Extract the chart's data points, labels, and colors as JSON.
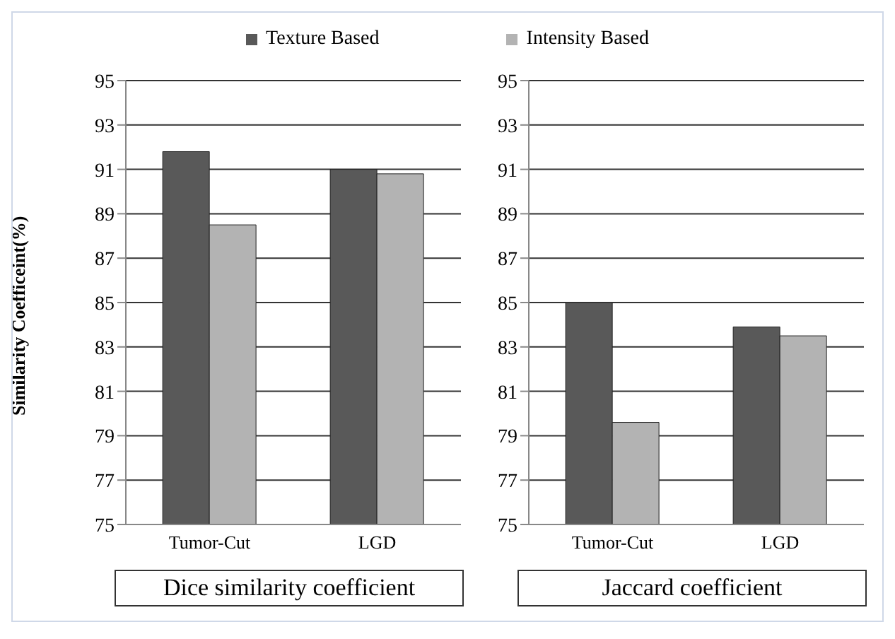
{
  "chart_data": [
    {
      "type": "bar",
      "ylabel": "Similarity Coefficeint(%)",
      "xlabel": "Dice similarity coefficient",
      "categories": [
        "Tumor-Cut",
        "LGD"
      ],
      "series": [
        {
          "name": "Texture Based",
          "color": "#595959",
          "values": [
            91.8,
            91.0
          ]
        },
        {
          "name": "Intensity Based",
          "color": "#b3b3b3",
          "values": [
            88.5,
            90.8
          ]
        }
      ],
      "ylim": [
        75,
        95
      ],
      "yticks": [
        75,
        77,
        79,
        81,
        83,
        85,
        87,
        89,
        91,
        93,
        95
      ],
      "grid": "y",
      "legend": "top"
    },
    {
      "type": "bar",
      "xlabel": "Jaccard coefficient",
      "categories": [
        "Tumor-Cut",
        "LGD"
      ],
      "series": [
        {
          "color": "#595959",
          "values": [
            85.0,
            83.9
          ]
        },
        {
          "color": "#b3b3b3",
          "values": [
            79.6,
            83.5
          ]
        }
      ],
      "ylim": [
        75,
        95
      ],
      "yticks": [
        75,
        77,
        79,
        81,
        83,
        85,
        87,
        89,
        91,
        93,
        95
      ],
      "grid": "y"
    }
  ]
}
